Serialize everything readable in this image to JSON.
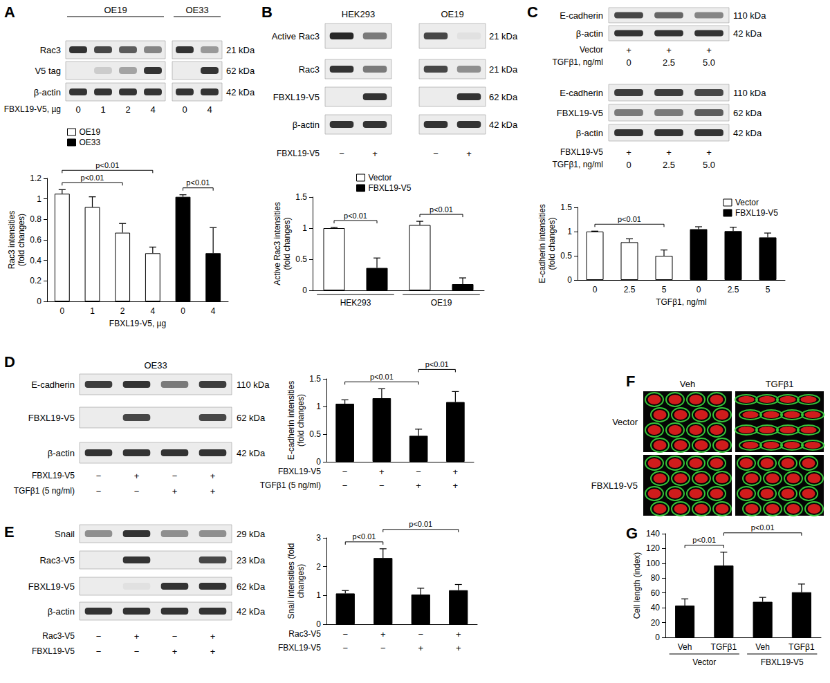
{
  "panel_labels": [
    "A",
    "B",
    "C",
    "D",
    "E",
    "F",
    "G"
  ],
  "blots": [
    {
      "panel": "A",
      "headers": [
        {
          "text": "OE19",
          "lanes": [
            0,
            3
          ]
        },
        {
          "text": "OE33",
          "lanes": [
            4,
            5
          ]
        }
      ],
      "rows": [
        {
          "label": "Rac3",
          "kda": "21 kDa"
        },
        {
          "label": "V5 tag",
          "kda": "62 kDa"
        },
        {
          "label": "β-actin",
          "kda": "42 kDa"
        }
      ],
      "conditions": [
        {
          "label": "FBXL19-V5, µg",
          "values": [
            "0",
            "1",
            "2",
            "4",
            "0",
            "4"
          ]
        }
      ]
    },
    {
      "panel": "B",
      "headers": [
        {
          "text": "HEK293",
          "lanes": [
            0,
            1
          ]
        },
        {
          "text": "OE19",
          "lanes": [
            2,
            3
          ]
        }
      ],
      "rows": [
        {
          "label": "Active Rac3",
          "kda": "21 kDa"
        },
        {
          "label": "Rac3",
          "kda": "21 kDa"
        },
        {
          "label": "FBXL19-V5",
          "kda": "62 kDa"
        },
        {
          "label": "β-actin",
          "kda": "42 kDa"
        }
      ],
      "conditions": [
        {
          "label": "FBXL19-V5",
          "values": [
            "−",
            "+",
            "−",
            "+"
          ]
        }
      ]
    },
    {
      "panel": "C",
      "rows": [
        {
          "label": "E-cadherin",
          "kda": "110 kDa"
        },
        {
          "label": "β-actin",
          "kda": "42 kDa"
        }
      ],
      "conditions": [
        {
          "label": "Vector",
          "values": [
            "+",
            "+",
            "+"
          ]
        },
        {
          "label": "TGFβ1, ng/ml",
          "values": [
            "0",
            "2.5",
            "5.0"
          ]
        }
      ]
    },
    {
      "panel": "C",
      "rows": [
        {
          "label": "E-cadherin",
          "kda": "110 kDa"
        },
        {
          "label": "FBXL19-V5",
          "kda": "62 kDa"
        },
        {
          "label": "β-actin",
          "kda": "42 kDa"
        }
      ],
      "conditions": [
        {
          "label": "FBXL19-V5",
          "values": [
            "+",
            "+",
            "+"
          ]
        },
        {
          "label": "TGFβ1, ng/ml",
          "values": [
            "0",
            "2.5",
            "5.0"
          ]
        }
      ]
    },
    {
      "panel": "D",
      "headers": [
        {
          "text": "OE33",
          "lanes": [
            0,
            3
          ]
        }
      ],
      "rows": [
        {
          "label": "E-cadherin",
          "kda": "110 kDa"
        },
        {
          "label": "FBXL19-V5",
          "kda": "62 kDa"
        },
        {
          "label": "β-actin",
          "kda": "42 kDa"
        }
      ],
      "conditions": [
        {
          "label": "FBXL19-V5",
          "values": [
            "−",
            "+",
            "−",
            "+"
          ]
        },
        {
          "label": "TGFβ1 (5 ng/ml)",
          "values": [
            "−",
            "−",
            "+",
            "+"
          ]
        }
      ]
    },
    {
      "panel": "E",
      "rows": [
        {
          "label": "Snail",
          "kda": "29 kDa"
        },
        {
          "label": "Rac3-V5",
          "kda": "23 kDa"
        },
        {
          "label": "FBXL19-V5",
          "kda": "62 kDa"
        },
        {
          "label": "β-actin",
          "kda": "42 kDa"
        }
      ],
      "conditions": [
        {
          "label": "Rac3-V5",
          "values": [
            "−",
            "+",
            "−",
            "+"
          ]
        },
        {
          "label": "FBXL19-V5",
          "values": [
            "−",
            "−",
            "+",
            "+"
          ]
        }
      ]
    }
  ],
  "images": {
    "panel": "F",
    "columns": [
      "Veh",
      "TGFβ1"
    ],
    "rows": [
      "Vector",
      "FBXL19-V5"
    ]
  },
  "chart_data": [
    {
      "panel": "A",
      "type": "bar",
      "y_label": "Rac3 intensities\n(fold changes)",
      "x_label": "FBXL19-V5, µg",
      "categories": [
        "0",
        "1",
        "2",
        "4",
        "0",
        "4"
      ],
      "series": [
        {
          "name": "OE19",
          "color": "#ffffff",
          "values": [
            1.05,
            0.92,
            0.67,
            0.47,
            null,
            null
          ],
          "errors": [
            0.04,
            0.1,
            0.09,
            0.06,
            null,
            null
          ]
        },
        {
          "name": "OE33",
          "color": "#000000",
          "values": [
            null,
            null,
            null,
            null,
            1.02,
            0.47
          ],
          "errors": [
            null,
            null,
            null,
            null,
            0.02,
            0.25
          ]
        }
      ],
      "ylim": [
        0,
        1.2
      ],
      "yticks": [
        0,
        0.2,
        0.4,
        0.6,
        0.8,
        1,
        1.2
      ],
      "grid": false,
      "legend": "upper left",
      "annotations": [
        {
          "text": "p<0.01",
          "from": 0,
          "to": 2
        },
        {
          "text": "p<0.01",
          "from": 0,
          "to": 3
        },
        {
          "text": "p<0.01",
          "from": 4,
          "to": 5
        }
      ]
    },
    {
      "panel": "B",
      "type": "bar",
      "y_label": "Active Rac3 intensities\n(fold changes)",
      "categories": [
        null,
        null,
        null,
        null
      ],
      "groups": [
        {
          "label": "HEK293",
          "from": 0,
          "to": 1
        },
        {
          "label": "OE19",
          "from": 2,
          "to": 3
        }
      ],
      "series": [
        {
          "name": "Vector",
          "color": "#ffffff",
          "values": [
            1.0,
            null,
            1.05,
            null
          ],
          "errors": [
            0.01,
            null,
            0.06,
            null
          ]
        },
        {
          "name": "FBXL19-V5",
          "color": "#000000",
          "values": [
            null,
            0.36,
            null,
            0.1
          ],
          "errors": [
            null,
            0.16,
            null,
            0.1
          ]
        }
      ],
      "ylim": [
        0,
        1.5
      ],
      "yticks": [
        0,
        0.5,
        1,
        1.5
      ],
      "grid": false,
      "legend": "upper left",
      "annotations": [
        {
          "text": "p<0.01",
          "from": 0,
          "to": 1
        },
        {
          "text": "p<0.01",
          "from": 2,
          "to": 3
        }
      ]
    },
    {
      "panel": "C",
      "type": "bar",
      "y_label": "E-cadherin intensities\n(fold changes)",
      "x_label": "TGFβ1, ng/ml",
      "categories": [
        "0",
        "2.5",
        "5",
        "0",
        "2.5",
        "5"
      ],
      "series": [
        {
          "name": "Vector",
          "color": "#ffffff",
          "values": [
            1.0,
            0.78,
            0.5,
            null,
            null,
            null
          ],
          "errors": [
            0.01,
            0.07,
            0.12,
            null,
            null,
            null
          ]
        },
        {
          "name": "FBXL19-V5",
          "color": "#000000",
          "values": [
            null,
            null,
            null,
            1.05,
            1.01,
            0.88
          ],
          "errors": [
            null,
            null,
            null,
            0.05,
            0.08,
            0.09
          ]
        }
      ],
      "ylim": [
        0,
        1.5
      ],
      "yticks": [
        0,
        0.5,
        1,
        1.5
      ],
      "grid": false,
      "legend": "upper right",
      "annotations": [
        {
          "text": "p<0.01",
          "from": 0,
          "to": 2
        }
      ]
    },
    {
      "panel": "D",
      "type": "bar",
      "y_label": "E-cadherin intensities\n(fold changes)",
      "categories": [
        null,
        null,
        null,
        null
      ],
      "conditions": [
        {
          "label": "FBXL19-V5",
          "values": [
            "−",
            "+",
            "−",
            "+"
          ]
        },
        {
          "label": "TGFβ1 (5 ng/ml)",
          "values": [
            "−",
            "−",
            "+",
            "+"
          ]
        }
      ],
      "values": [
        1.05,
        1.15,
        0.47,
        1.08
      ],
      "errors": [
        0.07,
        0.17,
        0.12,
        0.19
      ],
      "color": "#000000",
      "ylim": [
        0,
        1.5
      ],
      "yticks": [
        0,
        0.5,
        1,
        1.5
      ],
      "grid": false,
      "annotations": [
        {
          "text": "p<0.01",
          "from": 0,
          "to": 2
        },
        {
          "text": "p<0.01",
          "from": 2,
          "to": 3
        }
      ]
    },
    {
      "panel": "E",
      "type": "bar",
      "y_label": "Snail intensities (fold\nchanges)",
      "categories": [
        null,
        null,
        null,
        null
      ],
      "conditions": [
        {
          "label": "Rac3-V5",
          "values": [
            "−",
            "+",
            "−",
            "+"
          ]
        },
        {
          "label": "FBXL19-V5",
          "values": [
            "−",
            "−",
            "+",
            "+"
          ]
        }
      ],
      "values": [
        1.07,
        2.3,
        1.03,
        1.18
      ],
      "errors": [
        0.1,
        0.32,
        0.22,
        0.2
      ],
      "color": "#000000",
      "ylim": [
        0,
        3
      ],
      "yticks": [
        0,
        1,
        2,
        3
      ],
      "grid": false,
      "annotations": [
        {
          "text": "p<0.01",
          "from": 0,
          "to": 1
        },
        {
          "text": "p<0.01",
          "from": 1,
          "to": 3
        }
      ]
    },
    {
      "panel": "G",
      "type": "bar",
      "y_label": "Cell length (index)",
      "categories": [
        "Veh",
        "TGFβ1",
        "Veh",
        "TGFβ1"
      ],
      "groups": [
        {
          "label": "Vector",
          "from": 0,
          "to": 1
        },
        {
          "label": "FBXL19-V5",
          "from": 2,
          "to": 3
        }
      ],
      "values": [
        43,
        97,
        48,
        61
      ],
      "errors": [
        9,
        18,
        6,
        11
      ],
      "color": "#000000",
      "ylim": [
        0,
        140
      ],
      "yticks": [
        0,
        20,
        40,
        60,
        80,
        100,
        120,
        140
      ],
      "grid": false,
      "annotations": [
        {
          "text": "p<0.01",
          "from": 0,
          "to": 1
        },
        {
          "text": "p<0.01",
          "from": 1,
          "to": 3
        }
      ]
    }
  ]
}
